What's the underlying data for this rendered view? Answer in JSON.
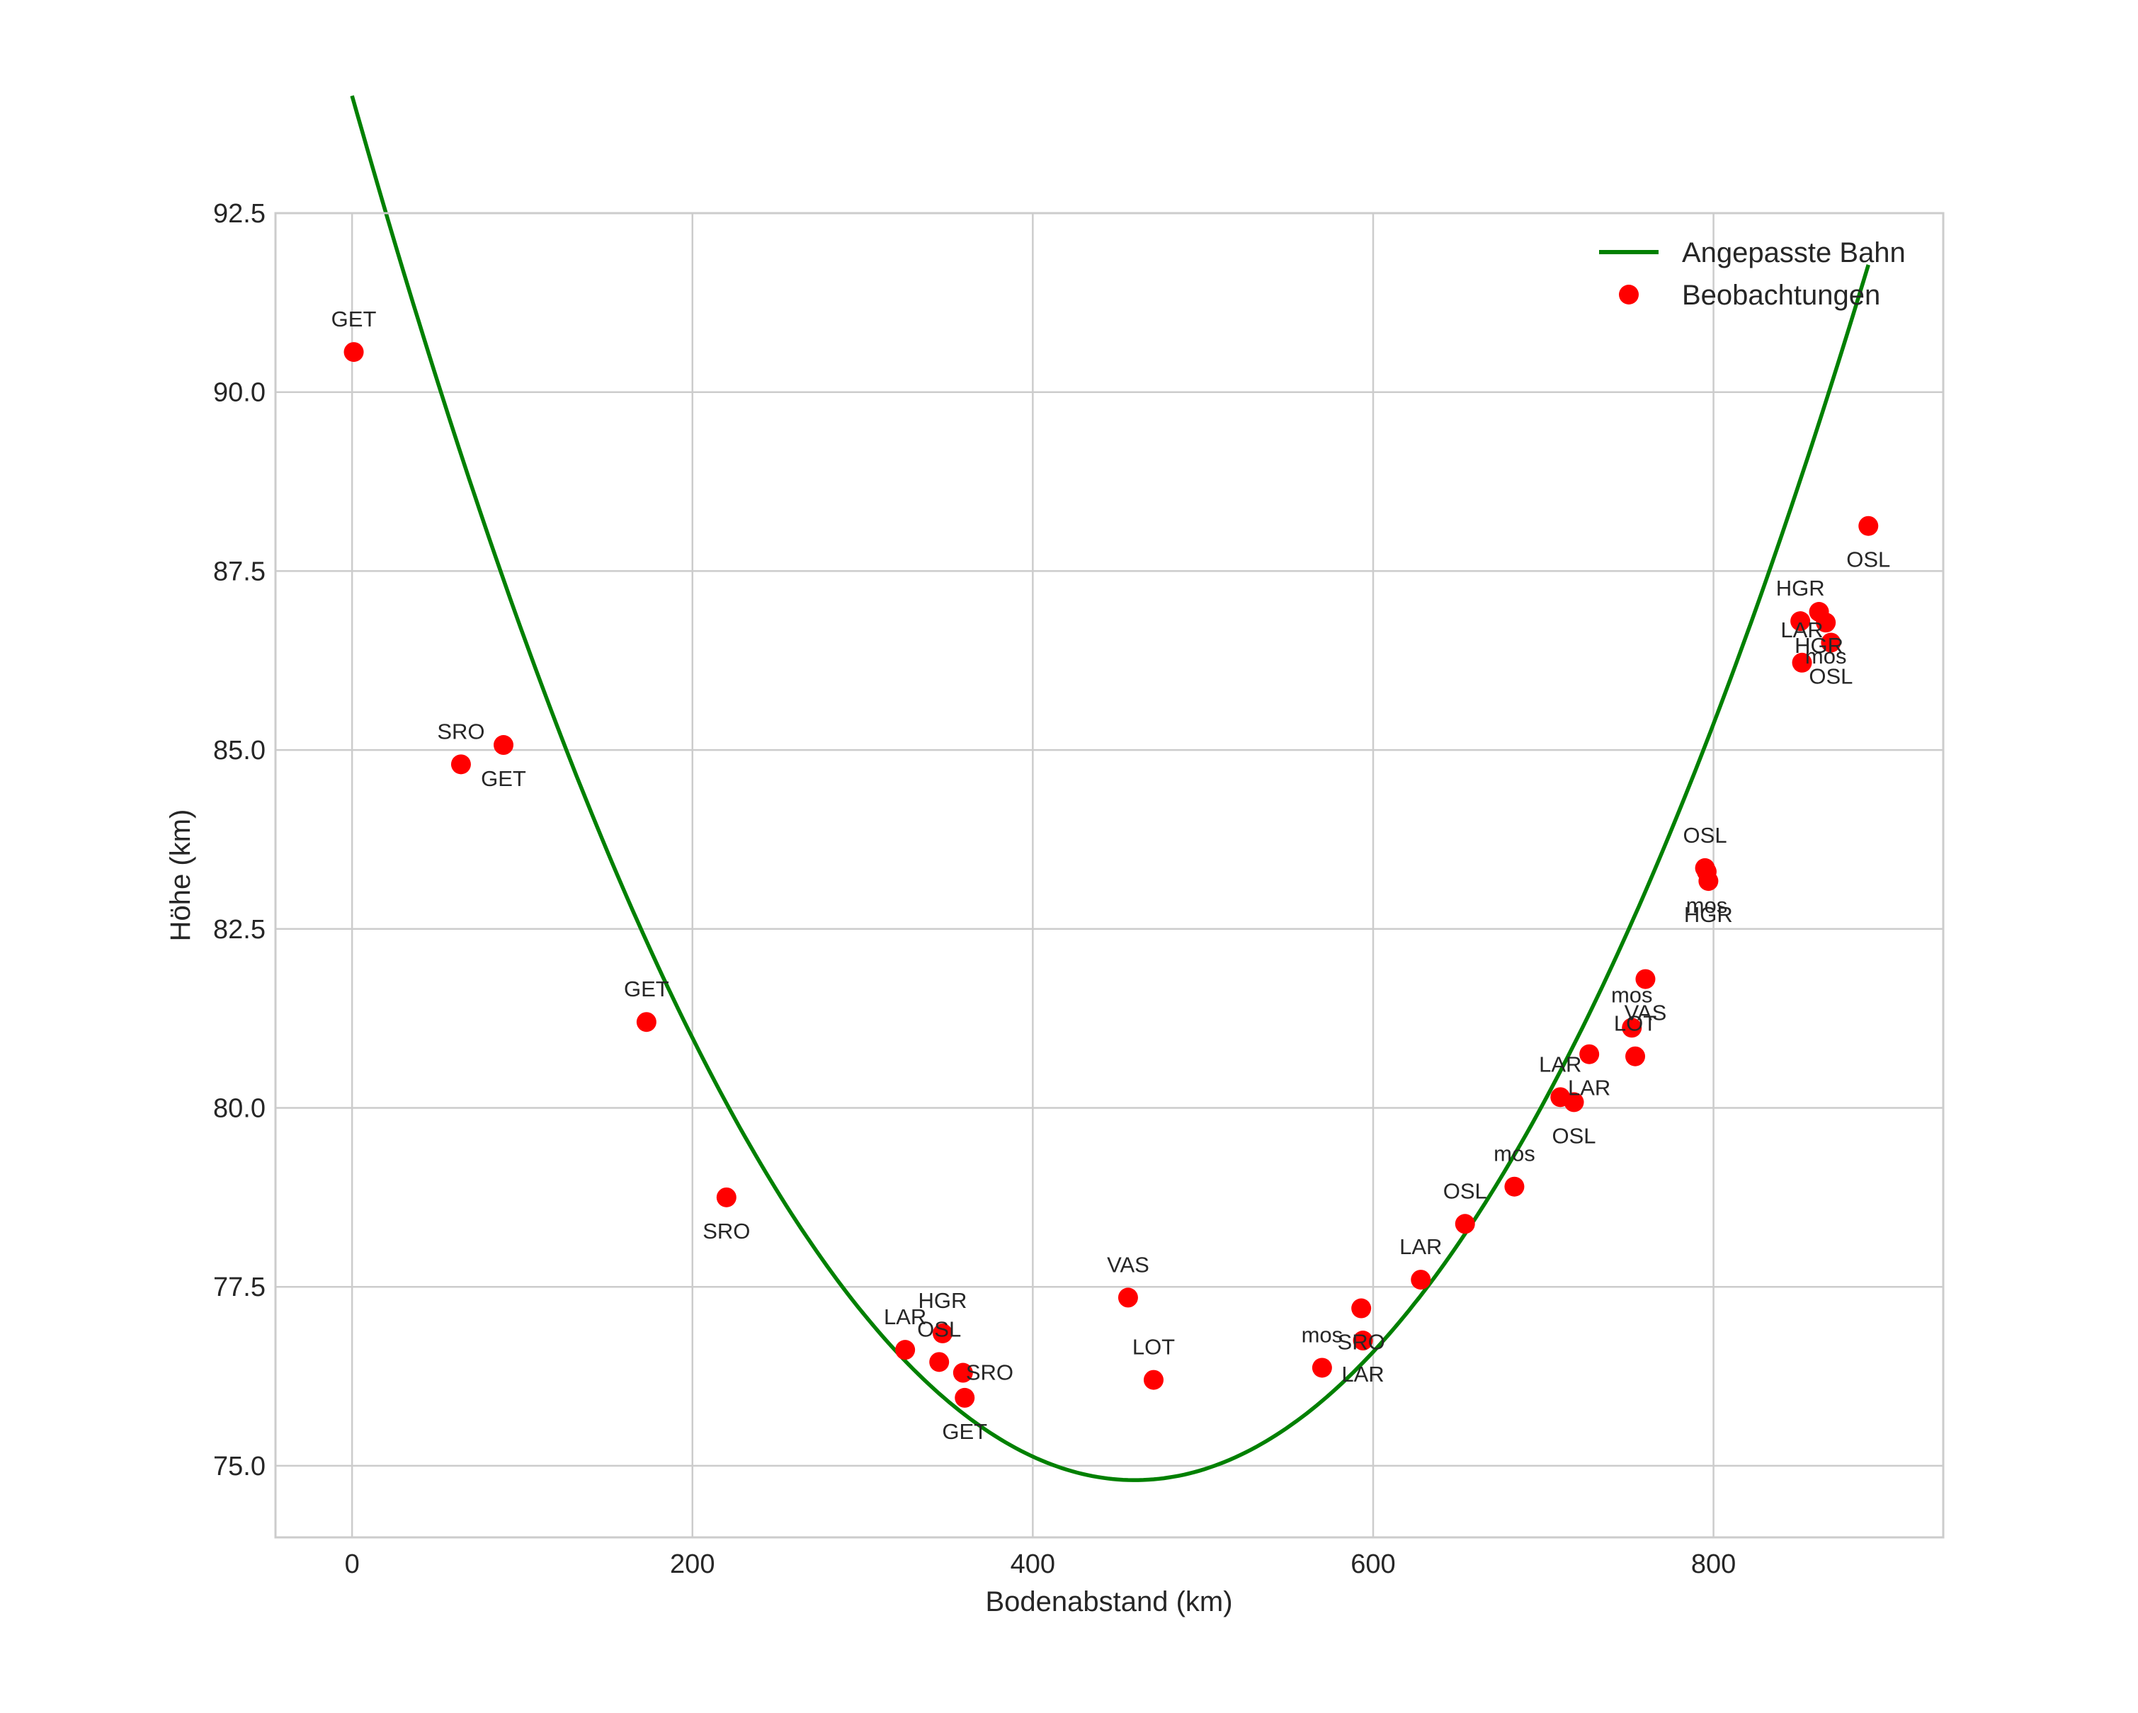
{
  "chart_data": {
    "type": "scatter",
    "title": "",
    "xlabel": "Bodenabstand (km)",
    "ylabel": "Höhe (km)",
    "xlim": [
      -45,
      935
    ],
    "ylim": [
      74.0,
      92.5
    ],
    "xticks": [
      0,
      200,
      400,
      600,
      800
    ],
    "xtick_labels": [
      "0",
      "200",
      "400",
      "600",
      "800"
    ],
    "yticks": [
      75.0,
      77.5,
      80.0,
      82.5,
      85.0,
      87.5,
      90.0,
      92.5
    ],
    "ytick_labels": [
      "75.0",
      "77.5",
      "80.0",
      "82.5",
      "85.0",
      "87.5",
      "90.0",
      "92.5"
    ],
    "grid": true,
    "legend": {
      "placement": "top-right",
      "entries": [
        {
          "name": "Angepasste Bahn",
          "marker": "line",
          "color": "#008000"
        },
        {
          "name": "Beobachtungen",
          "marker": "circle",
          "color": "#ff0000"
        }
      ]
    },
    "series": [
      {
        "name": "Angepasste Bahn",
        "kind": "line",
        "color": "#008000",
        "model": "quadratic",
        "vertex": [
          460,
          74.8
        ],
        "curvature": 9.14e-05,
        "x_range": [
          0,
          891
        ]
      },
      {
        "name": "Beobachtungen",
        "kind": "scatter",
        "color": "#ff0000",
        "points": [
          {
            "x": 1,
            "y": 90.56,
            "label": "GET",
            "label_pos": "above"
          },
          {
            "x": 64,
            "y": 84.8,
            "label": "SRO",
            "label_pos": "above"
          },
          {
            "x": 89,
            "y": 85.07,
            "label": "GET",
            "label_pos": "below"
          },
          {
            "x": 173,
            "y": 81.2,
            "label": "GET",
            "label_pos": "above"
          },
          {
            "x": 220,
            "y": 78.75,
            "label": "SRO",
            "label_pos": "below"
          },
          {
            "x": 325,
            "y": 76.62,
            "label": "LAR",
            "label_pos": "above"
          },
          {
            "x": 347,
            "y": 76.85,
            "label": "HGR",
            "label_pos": "above"
          },
          {
            "x": 345,
            "y": 76.45,
            "label": "OSL",
            "label_pos": "above"
          },
          {
            "x": 359,
            "y": 76.3,
            "label": "SRO",
            "label_pos": "right"
          },
          {
            "x": 360,
            "y": 75.95,
            "label": "GET",
            "label_pos": "below"
          },
          {
            "x": 456,
            "y": 77.35,
            "label": "VAS",
            "label_pos": "above"
          },
          {
            "x": 471,
            "y": 76.2,
            "label": "LOT",
            "label_pos": "above"
          },
          {
            "x": 570,
            "y": 76.37,
            "label": "mos",
            "label_pos": "above"
          },
          {
            "x": 593,
            "y": 77.2,
            "label": "SRO",
            "label_pos": "below"
          },
          {
            "x": 594,
            "y": 76.75,
            "label": "LAR",
            "label_pos": "below"
          },
          {
            "x": 628,
            "y": 77.6,
            "label": "LAR",
            "label_pos": "above"
          },
          {
            "x": 654,
            "y": 78.38,
            "label": "OSL",
            "label_pos": "above"
          },
          {
            "x": 683,
            "y": 78.9,
            "label": "mos",
            "label_pos": "above"
          },
          {
            "x": 710,
            "y": 80.15,
            "label": "LAR",
            "label_pos": "above"
          },
          {
            "x": 718,
            "y": 80.08,
            "label": "OSL",
            "label_pos": "below"
          },
          {
            "x": 727,
            "y": 80.75,
            "label": "LAR",
            "label_pos": "below"
          },
          {
            "x": 752,
            "y": 81.12,
            "label": "mos",
            "label_pos": "above"
          },
          {
            "x": 754,
            "y": 80.72,
            "label": "LOT",
            "label_pos": "above"
          },
          {
            "x": 760,
            "y": 81.8,
            "label": "VAS",
            "label_pos": "below"
          },
          {
            "x": 795,
            "y": 83.35,
            "label": "OSL",
            "label_pos": "above"
          },
          {
            "x": 797,
            "y": 83.17,
            "label": "HGR",
            "label_pos": "below"
          },
          {
            "x": 796,
            "y": 83.3,
            "label": "mos",
            "label_pos": "below"
          },
          {
            "x": 851,
            "y": 86.8,
            "label": "HGR",
            "label_pos": "above"
          },
          {
            "x": 862,
            "y": 86.93,
            "label": "HGR",
            "label_pos": "below"
          },
          {
            "x": 866,
            "y": 86.78,
            "label": "mos",
            "label_pos": "below"
          },
          {
            "x": 852,
            "y": 86.22,
            "label": "LAR",
            "label_pos": "above"
          },
          {
            "x": 869,
            "y": 86.5,
            "label": "OSL",
            "label_pos": "below"
          },
          {
            "x": 891,
            "y": 88.13,
            "label": "OSL",
            "label_pos": "below"
          }
        ]
      }
    ]
  }
}
